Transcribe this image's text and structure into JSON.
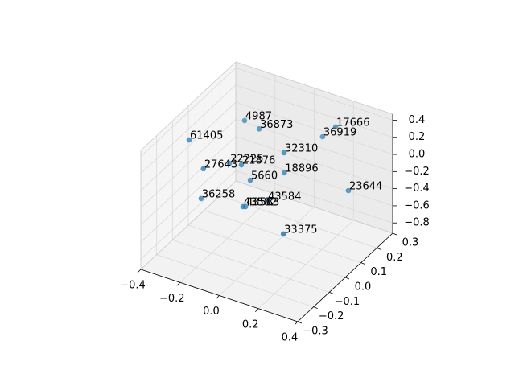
{
  "chart_data": {
    "type": "scatter",
    "color": "#1f77b4",
    "labels": [
      "4987",
      "36873",
      "17666",
      "36919",
      "61405",
      "32310",
      "22225",
      "21876",
      "27643",
      "18896",
      "5660",
      "23644",
      "36258",
      "43584",
      "43582",
      "43583",
      "33375"
    ],
    "x": [
      -0.21,
      -0.087,
      0.206,
      0.091,
      -0.299,
      0.088,
      -0.19,
      -0.081,
      -0.226,
      0.041,
      -0.084,
      0.271,
      -0.238,
      -0.046,
      -0.073,
      -0.06,
      0.23
    ],
    "y": [
      0.12,
      0.06,
      0.18,
      0.24,
      -0.12,
      0,
      0,
      -0.06,
      -0.12,
      0.06,
      0,
      0.18,
      -0.12,
      0.06,
      -0.06,
      -0.06,
      -0.18
    ],
    "z": [
      0.24,
      0.34,
      0.38,
      0.074,
      0.359,
      0.298,
      -0.037,
      0.131,
      0.078,
      -0.076,
      -0.153,
      -0.314,
      -0.279,
      -0.472,
      -0.351,
      -0.342,
      -0.232
    ],
    "xlim": [
      -0.4,
      0.4
    ],
    "ylim": [
      -0.3,
      0.3
    ],
    "zlim": [
      -0.92,
      0.47
    ],
    "xticks": [
      {
        "value": -0.4,
        "label": "−0.4"
      },
      {
        "value": -0.2,
        "label": "−0.2"
      },
      {
        "value": 0,
        "label": "0.0"
      },
      0.2,
      0.4
    ],
    "yticks": [
      {
        "value": -0.3,
        "label": "−0.3"
      },
      {
        "value": -0.2,
        "label": "−0.2"
      },
      {
        "value": -0.1,
        "label": "−0.1"
      },
      {
        "value": 0,
        "label": "0.0"
      },
      0.1,
      0.2,
      0.3
    ],
    "zticks": [
      {
        "value": -0.8,
        "label": "−0.8"
      },
      {
        "value": -0.6,
        "label": "−0.6"
      },
      {
        "value": -0.4,
        "label": "−0.4"
      },
      {
        "value": -0.2,
        "label": "−0.2"
      },
      {
        "value": 0,
        "label": "0.0"
      },
      0.2,
      0.4
    ],
    "grid": true
  }
}
